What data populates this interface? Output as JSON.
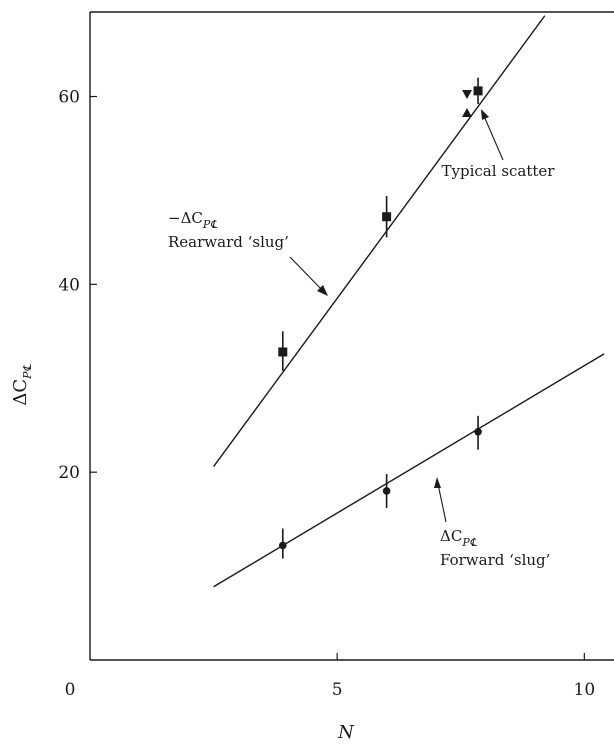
{
  "chart_data": {
    "type": "scatter",
    "xlabel": "N",
    "ylabel": "ΔC",
    "ylabel_subscript": "P℄",
    "xlim": [
      0,
      10.6
    ],
    "ylim": [
      0,
      69
    ],
    "x_ticks": [
      {
        "value": 0,
        "label": "0"
      },
      {
        "value": 5,
        "label": "5"
      },
      {
        "value": 10,
        "label": "10"
      }
    ],
    "y_ticks": [
      {
        "value": 20,
        "label": "20"
      },
      {
        "value": 40,
        "label": "40"
      },
      {
        "value": 60,
        "label": "60"
      }
    ],
    "grid": false,
    "series": [
      {
        "id": "rearward",
        "label_prefix": "−ΔC",
        "label_subscript": "P℄",
        "label_line2": "Rearward ‘slug’",
        "marker": "square",
        "points": [
          {
            "x": 3.9,
            "y": 32.8,
            "err_low": 30.8,
            "err_high": 35.0
          },
          {
            "x": 6.0,
            "y": 47.2,
            "err_low": 45.0,
            "err_high": 49.4
          },
          {
            "x": 7.85,
            "y": 60.6,
            "err_low": 59.2,
            "err_high": 62.0
          }
        ],
        "fit_line": [
          {
            "x": 2.5,
            "y": 20.6
          },
          {
            "x": 9.2,
            "y": 68.6
          }
        ]
      },
      {
        "id": "forward",
        "label_prefix": "ΔC",
        "label_subscript": "P℄",
        "label_line2": "Forward ‘slug’",
        "marker": "circle",
        "points": [
          {
            "x": 3.9,
            "y": 12.2,
            "err_low": 10.8,
            "err_high": 14.0
          },
          {
            "x": 6.0,
            "y": 18.0,
            "err_low": 16.2,
            "err_high": 19.8
          },
          {
            "x": 7.85,
            "y": 24.3,
            "err_low": 22.4,
            "err_high": 26.0
          }
        ],
        "fit_line": [
          {
            "x": 2.5,
            "y": 7.8
          },
          {
            "x": 10.4,
            "y": 32.6
          }
        ]
      }
    ],
    "annotations": [
      {
        "text": "Typical scatter"
      }
    ]
  }
}
